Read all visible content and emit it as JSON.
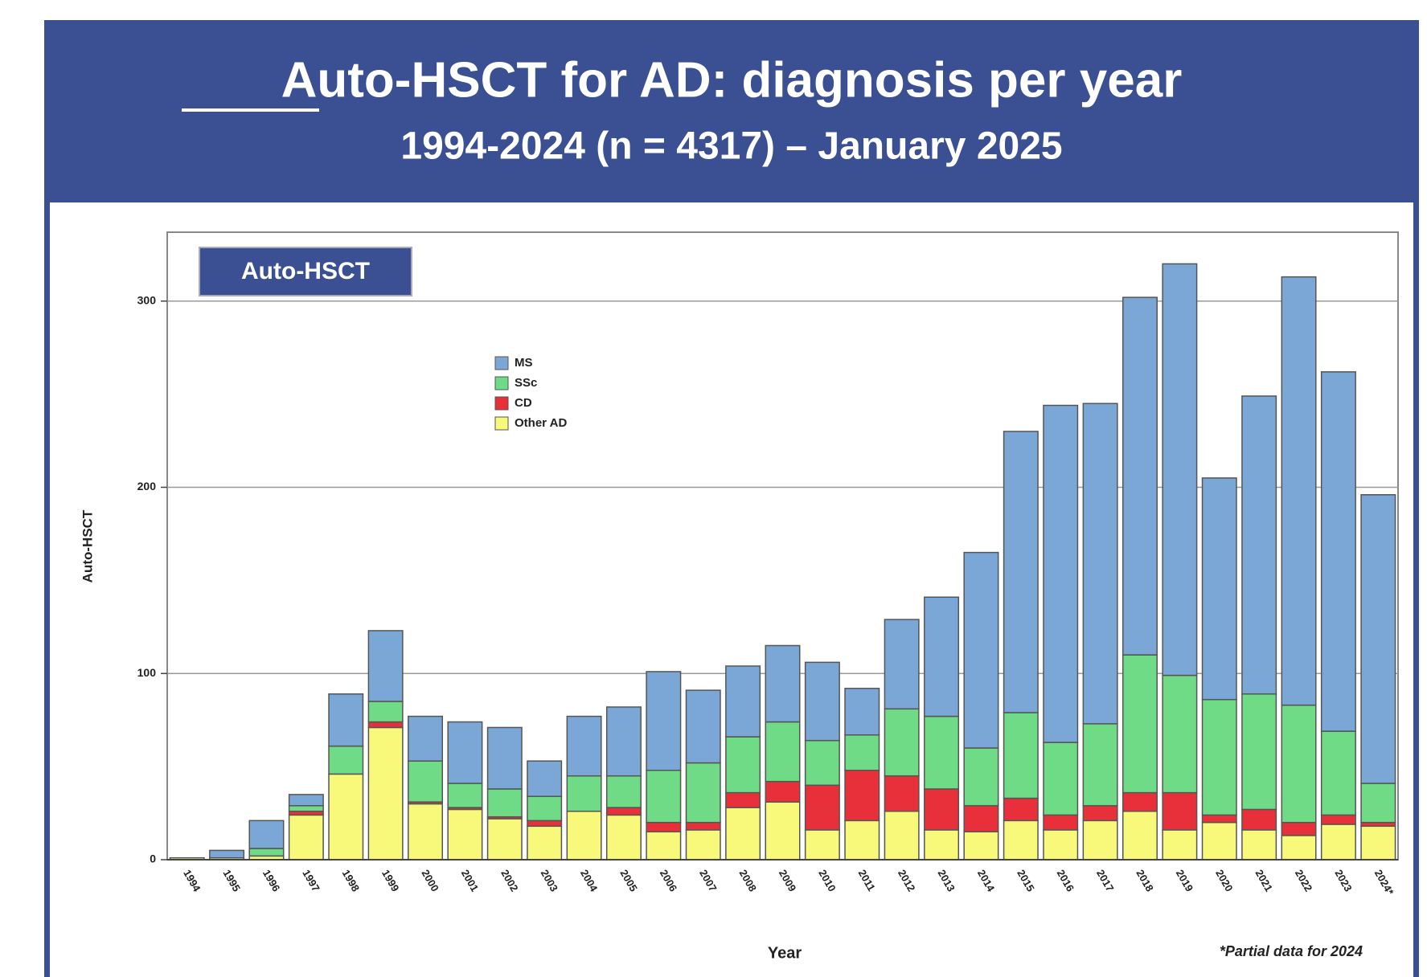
{
  "chart_data": {
    "type": "stacked_bar",
    "title": "Auto-HSCT for AD: diagnosis per year",
    "subtitle": "1994-2024 (n = 4317) – January 2025",
    "badge": "Auto-HSCT",
    "y_label": "Auto-HSCT",
    "x_label": "Year",
    "note": "*Partial data for 2024",
    "categories": [
      "1994",
      "1995",
      "1996",
      "1997",
      "1998",
      "1999",
      "2000",
      "2001",
      "2002",
      "2003",
      "2004",
      "2005",
      "2006",
      "2007",
      "2008",
      "2009",
      "2010",
      "2011",
      "2012",
      "2013",
      "2014",
      "2015",
      "2016",
      "2017",
      "2018",
      "2019",
      "2020",
      "2021",
      "2022",
      "2023",
      "2024*"
    ],
    "series": [
      {
        "name": "Other AD",
        "color": "#f8f87a",
        "values": [
          1,
          1,
          2,
          24,
          46,
          71,
          30,
          27,
          22,
          18,
          26,
          24,
          15,
          16,
          28,
          31,
          16,
          21,
          26,
          16,
          15,
          21,
          16,
          21,
          26,
          16,
          20,
          16,
          13,
          19,
          18
        ]
      },
      {
        "name": "CD",
        "color": "#e8303a",
        "values": [
          0,
          0,
          0,
          2,
          0,
          3,
          1,
          1,
          1,
          3,
          0,
          4,
          5,
          4,
          8,
          11,
          24,
          27,
          19,
          22,
          14,
          12,
          8,
          8,
          10,
          20,
          4,
          11,
          7,
          5,
          2
        ]
      },
      {
        "name": "SSc",
        "color": "#6fdb86",
        "values": [
          0,
          0,
          4,
          3,
          15,
          11,
          22,
          13,
          15,
          13,
          19,
          17,
          28,
          32,
          30,
          32,
          24,
          19,
          36,
          39,
          31,
          46,
          39,
          44,
          74,
          63,
          62,
          62,
          63,
          45,
          21
        ]
      },
      {
        "name": "MS",
        "color": "#7ba7d6",
        "values": [
          0,
          4,
          15,
          6,
          28,
          38,
          24,
          33,
          33,
          19,
          32,
          37,
          53,
          39,
          38,
          41,
          42,
          25,
          48,
          64,
          105,
          151,
          181,
          172,
          192,
          221,
          119,
          160,
          230,
          193,
          155
        ]
      }
    ],
    "legend_order": [
      3,
      2,
      1,
      0
    ],
    "ylim": [
      0,
      337
    ],
    "yticks": [
      0,
      100,
      200,
      300
    ],
    "grid": true
  }
}
